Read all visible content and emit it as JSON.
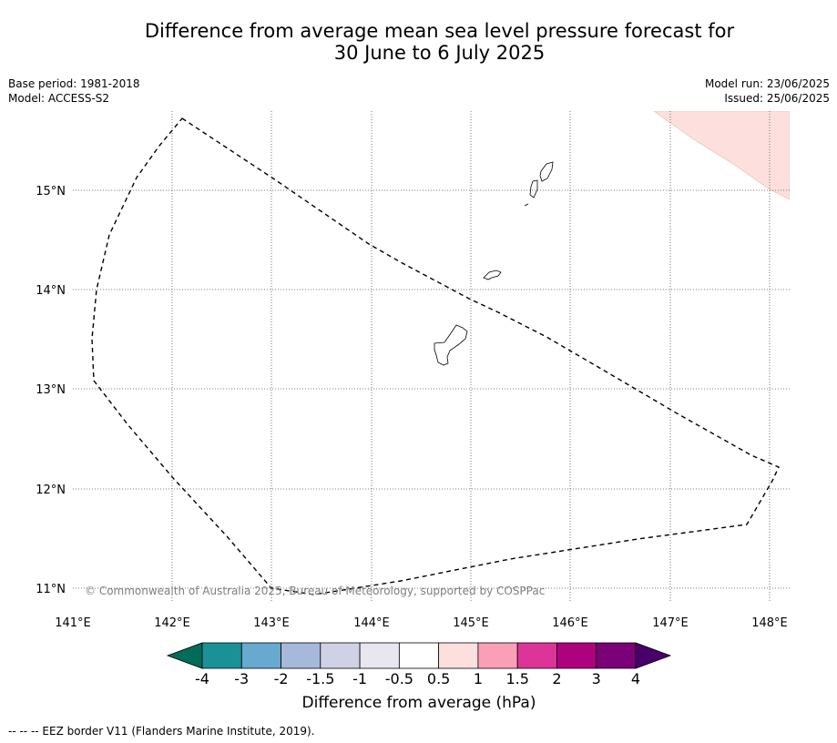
{
  "title": {
    "line1": "Difference from average mean sea level pressure forecast for",
    "line2": "30 June to 6 July 2025"
  },
  "meta": {
    "base_period": "Base period: 1981-2018",
    "model": "Model: ACCESS-S2",
    "model_run": "Model run: 23/06/2025",
    "issued": "Issued: 25/06/2025"
  },
  "map": {
    "lat_labels": [
      "15°N",
      "14°N",
      "13°N",
      "12°N",
      "11°N"
    ],
    "lon_labels": [
      "141°E",
      "142°E",
      "143°E",
      "144°E",
      "145°E",
      "146°E",
      "147°E",
      "148°E"
    ],
    "copyright": "© Commonwealth of Australia 2025, Bureau of Meteorology, supported by COSPPac",
    "shading_color": "#fde0dd",
    "grid": true,
    "projection": "lat-lon"
  },
  "colorbar": {
    "title": "Difference from average (hPa)",
    "tick_labels": [
      "-4",
      "-3",
      "-2",
      "-1.5",
      "-1",
      "-0.5",
      "0.5",
      "1",
      "1.5",
      "2",
      "3",
      "4"
    ],
    "colors": [
      "#1a9196",
      "#67a9cf",
      "#a6b9da",
      "#d0d1e6",
      "#e8e6ee",
      "#ffffff",
      "#fde0dd",
      "#fa9fb5",
      "#dd3497",
      "#ae017e",
      "#7a0177"
    ],
    "under_color": "#016c59",
    "over_color": "#49006a"
  },
  "footer": {
    "text": "--  --  -- EEZ border V11 (Flanders Marine Institute, 2019)."
  }
}
